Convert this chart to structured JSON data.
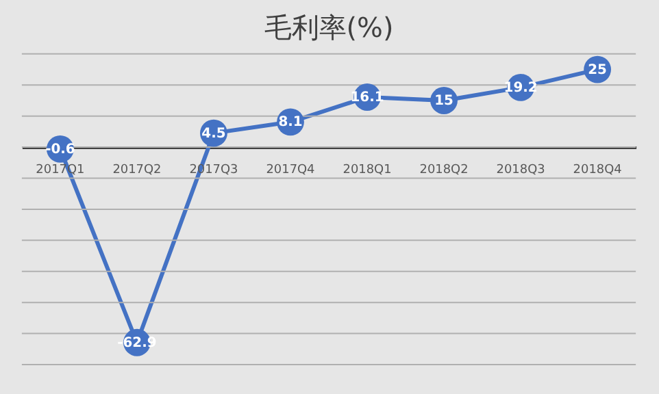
{
  "chart_data": {
    "type": "line",
    "title": "毛利率(%)",
    "categories": [
      "2017Q1",
      "2017Q2",
      "2017Q3",
      "2017Q4",
      "2018Q1",
      "2018Q2",
      "2018Q3",
      "2018Q4"
    ],
    "series": [
      {
        "color": "#4472c4",
        "values": [
          -0.6,
          -62.9,
          4.5,
          8.1,
          16.1,
          15,
          19.2,
          25
        ]
      }
    ],
    "ylim": [
      -70,
      30
    ],
    "yticks": [
      {
        "value": -70,
        "label": null
      },
      {
        "value": -60,
        "label": null
      },
      {
        "value": -50,
        "label": null
      },
      {
        "value": -40,
        "label": null
      },
      {
        "value": -30,
        "label": null
      },
      {
        "value": -20,
        "label": null
      },
      {
        "value": -10,
        "label": null
      },
      {
        "value": 0,
        "label": null
      },
      {
        "value": 10,
        "label": null
      },
      {
        "value": 20,
        "label": null
      },
      {
        "value": 30,
        "label": null
      }
    ],
    "grid": "y",
    "tick_labels": "x",
    "data_labels": true,
    "marker": "circle",
    "line_style": "solid",
    "legend": false
  }
}
